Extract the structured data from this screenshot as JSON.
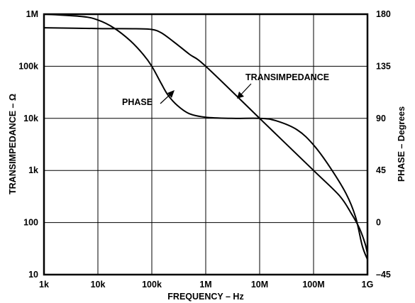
{
  "chart_data": {
    "type": "line",
    "xlabel": "FREQUENCY – Hz",
    "ylabel": "TRANSIMPEDANCE – Ω",
    "y2label": "PHASE – Degrees",
    "x_scale": "log",
    "y_scale": "log",
    "xlim": [
      1000,
      1000000000
    ],
    "ylim": [
      10,
      1000000
    ],
    "y2lim": [
      -45,
      180
    ],
    "grid": true,
    "x_ticks": [
      {
        "value": 1000,
        "label": "1k"
      },
      {
        "value": 10000,
        "label": "10k"
      },
      {
        "value": 100000,
        "label": "100k"
      },
      {
        "value": 1000000,
        "label": "1M"
      },
      {
        "value": 10000000,
        "label": "10M"
      },
      {
        "value": 100000000,
        "label": "100M"
      },
      {
        "value": 1000000000,
        "label": "1G"
      }
    ],
    "y_ticks": [
      {
        "value": 10,
        "label": "10"
      },
      {
        "value": 100,
        "label": "100"
      },
      {
        "value": 1000,
        "label": "1k"
      },
      {
        "value": 10000,
        "label": "10k"
      },
      {
        "value": 100000,
        "label": "100k"
      },
      {
        "value": 1000000,
        "label": "1M"
      }
    ],
    "y2_ticks": [
      {
        "value": -45,
        "label": "–45"
      },
      {
        "value": 0,
        "label": "0"
      },
      {
        "value": 45,
        "label": "45"
      },
      {
        "value": 90,
        "label": "90"
      },
      {
        "value": 135,
        "label": "135"
      },
      {
        "value": 180,
        "label": "180"
      }
    ],
    "series": [
      {
        "name": "TRANSIMPEDANCE",
        "axis": "left",
        "x": [
          1000,
          10000,
          50000,
          100000,
          150000,
          250000,
          500000,
          1000000,
          10000000,
          100000000,
          300000000,
          500000000,
          700000000,
          900000000,
          1000000000
        ],
        "y": [
          550000,
          530000,
          525000,
          510000,
          440000,
          300000,
          170000,
          100000,
          10000,
          1000,
          330.0,
          150,
          80,
          40,
          25
        ]
      },
      {
        "name": "PHASE",
        "axis": "right",
        "x": [
          1000,
          5000,
          10000,
          20000,
          40000,
          70000,
          100000,
          150000,
          200000,
          300000,
          500000,
          1000000,
          3000000,
          10000000,
          20000000,
          50000000,
          100000000,
          200000000,
          400000000,
          600000000,
          800000000,
          1000000000
        ],
        "y": [
          180,
          178,
          175,
          168,
          157,
          145,
          135,
          120,
          110,
          101,
          94,
          91,
          90,
          90,
          88,
          80,
          67,
          48,
          25,
          5,
          -20,
          -32
        ]
      }
    ],
    "annotations": [
      {
        "text": "TRANSIMPEDANCE"
      },
      {
        "text": "PHASE"
      }
    ]
  }
}
